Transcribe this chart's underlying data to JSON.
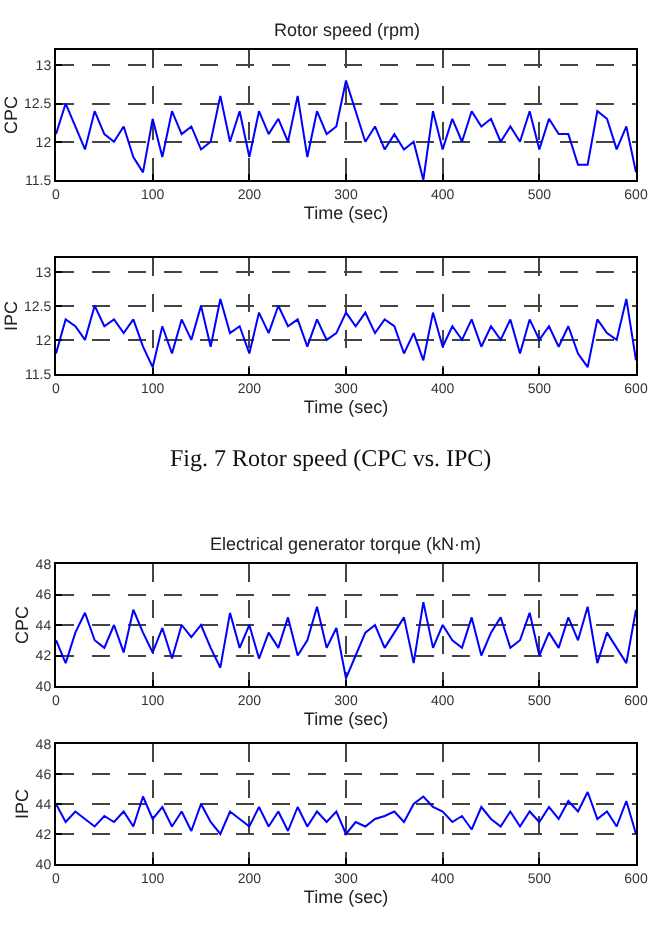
{
  "chart_data": [
    {
      "type": "line",
      "title": "Rotor speed (rpm)",
      "xlabel": "Time (sec)",
      "ylabel": "CPC",
      "xlim": [
        0,
        600
      ],
      "xticks": [
        0,
        100,
        200,
        300,
        400,
        500,
        600
      ],
      "ylim": [
        11.5,
        13.2
      ],
      "yticks": [
        11.5,
        12,
        12.5,
        13
      ],
      "grid": true,
      "x": [
        0,
        10,
        20,
        30,
        40,
        50,
        60,
        70,
        80,
        90,
        100,
        110,
        120,
        130,
        140,
        150,
        160,
        170,
        180,
        190,
        200,
        210,
        220,
        230,
        240,
        250,
        260,
        270,
        280,
        290,
        300,
        310,
        320,
        330,
        340,
        350,
        360,
        370,
        380,
        390,
        400,
        410,
        420,
        430,
        440,
        450,
        460,
        470,
        480,
        490,
        500,
        510,
        520,
        530,
        540,
        550,
        560,
        570,
        580,
        590,
        600
      ],
      "series": [
        {
          "color": "#0000ff",
          "values": [
            12.1,
            12.5,
            12.2,
            11.9,
            12.4,
            12.1,
            12.0,
            12.2,
            11.8,
            11.6,
            12.3,
            11.8,
            12.4,
            12.1,
            12.2,
            11.9,
            12.0,
            12.6,
            12.0,
            12.4,
            11.8,
            12.4,
            12.1,
            12.3,
            12.0,
            12.6,
            11.8,
            12.4,
            12.1,
            12.2,
            12.8,
            12.4,
            12.0,
            12.2,
            11.9,
            12.1,
            11.9,
            12.0,
            11.5,
            12.4,
            11.9,
            12.3,
            12.0,
            12.4,
            12.2,
            12.3,
            12.0,
            12.2,
            12.0,
            12.4,
            11.9,
            12.3,
            12.1,
            12.1,
            11.7,
            11.7,
            12.4,
            12.3,
            11.9,
            12.2,
            11.6
          ]
        }
      ]
    },
    {
      "type": "line",
      "xlabel": "Time (sec)",
      "ylabel": "IPC",
      "xlim": [
        0,
        600
      ],
      "xticks": [
        0,
        100,
        200,
        300,
        400,
        500,
        600
      ],
      "ylim": [
        11.5,
        13.2
      ],
      "yticks": [
        11.5,
        12,
        12.5,
        13
      ],
      "grid": true,
      "annotations": [
        "Fig. 7 Rotor speed (CPC vs. IPC)"
      ],
      "x": [
        0,
        10,
        20,
        30,
        40,
        50,
        60,
        70,
        80,
        90,
        100,
        110,
        120,
        130,
        140,
        150,
        160,
        170,
        180,
        190,
        200,
        210,
        220,
        230,
        240,
        250,
        260,
        270,
        280,
        290,
        300,
        310,
        320,
        330,
        340,
        350,
        360,
        370,
        380,
        390,
        400,
        410,
        420,
        430,
        440,
        450,
        460,
        470,
        480,
        490,
        500,
        510,
        520,
        530,
        540,
        550,
        560,
        570,
        580,
        590,
        600
      ],
      "series": [
        {
          "color": "#0000ff",
          "values": [
            11.8,
            12.3,
            12.2,
            12.0,
            12.5,
            12.2,
            12.3,
            12.1,
            12.3,
            11.9,
            11.6,
            12.2,
            11.8,
            12.3,
            12.0,
            12.5,
            11.9,
            12.6,
            12.1,
            12.2,
            11.8,
            12.4,
            12.1,
            12.5,
            12.2,
            12.3,
            11.9,
            12.3,
            12.0,
            12.1,
            12.4,
            12.2,
            12.4,
            12.1,
            12.3,
            12.2,
            11.8,
            12.1,
            11.7,
            12.4,
            11.9,
            12.2,
            12.0,
            12.3,
            11.9,
            12.2,
            12.0,
            12.3,
            11.8,
            12.3,
            12.0,
            12.2,
            11.9,
            12.2,
            11.8,
            11.6,
            12.3,
            12.1,
            12.0,
            12.6,
            11.7
          ]
        }
      ]
    },
    {
      "type": "line",
      "title": "Electrical generator torque (kN·m)",
      "xlabel": "Time (sec)",
      "ylabel": "CPC",
      "xlim": [
        0,
        600
      ],
      "xticks": [
        0,
        100,
        200,
        300,
        400,
        500,
        600
      ],
      "ylim": [
        40,
        48
      ],
      "yticks": [
        40,
        42,
        44,
        46,
        48
      ],
      "grid": true,
      "x": [
        0,
        10,
        20,
        30,
        40,
        50,
        60,
        70,
        80,
        90,
        100,
        110,
        120,
        130,
        140,
        150,
        160,
        170,
        180,
        190,
        200,
        210,
        220,
        230,
        240,
        250,
        260,
        270,
        280,
        290,
        300,
        310,
        320,
        330,
        340,
        350,
        360,
        370,
        380,
        390,
        400,
        410,
        420,
        430,
        440,
        450,
        460,
        470,
        480,
        490,
        500,
        510,
        520,
        530,
        540,
        550,
        560,
        570,
        580,
        590,
        600
      ],
      "series": [
        {
          "color": "#0000ff",
          "values": [
            43.0,
            41.5,
            43.5,
            44.8,
            43.0,
            42.5,
            44.0,
            42.2,
            45.0,
            43.5,
            42.2,
            43.8,
            41.8,
            44.0,
            43.2,
            44.0,
            42.5,
            41.2,
            44.8,
            42.5,
            44.0,
            41.8,
            43.5,
            42.5,
            44.5,
            42.0,
            43.0,
            45.2,
            42.5,
            43.8,
            40.5,
            42.0,
            43.5,
            44.0,
            42.5,
            43.5,
            44.5,
            41.5,
            45.5,
            42.5,
            44.0,
            43.0,
            42.5,
            44.5,
            42.0,
            43.5,
            44.5,
            42.5,
            43.0,
            44.8,
            42.0,
            43.5,
            42.5,
            44.5,
            43.0,
            45.2,
            41.5,
            43.5,
            42.5,
            41.5,
            45.0
          ]
        }
      ]
    },
    {
      "type": "line",
      "xlabel": "Time (sec)",
      "ylabel": "IPC",
      "xlim": [
        0,
        600
      ],
      "xticks": [
        0,
        100,
        200,
        300,
        400,
        500,
        600
      ],
      "ylim": [
        40,
        48
      ],
      "yticks": [
        40,
        42,
        44,
        46,
        48
      ],
      "grid": true,
      "x": [
        0,
        10,
        20,
        30,
        40,
        50,
        60,
        70,
        80,
        90,
        100,
        110,
        120,
        130,
        140,
        150,
        160,
        170,
        180,
        190,
        200,
        210,
        220,
        230,
        240,
        250,
        260,
        270,
        280,
        290,
        300,
        310,
        320,
        330,
        340,
        350,
        360,
        370,
        380,
        390,
        400,
        410,
        420,
        430,
        440,
        450,
        460,
        470,
        480,
        490,
        500,
        510,
        520,
        530,
        540,
        550,
        560,
        570,
        580,
        590,
        600
      ],
      "series": [
        {
          "color": "#0000ff",
          "values": [
            44.0,
            42.8,
            43.5,
            43.0,
            42.5,
            43.2,
            42.8,
            43.5,
            42.5,
            44.5,
            43.0,
            43.8,
            42.5,
            43.5,
            42.2,
            44.0,
            42.8,
            42.0,
            43.5,
            43.0,
            42.5,
            43.8,
            42.5,
            43.5,
            42.2,
            43.8,
            42.5,
            43.5,
            42.8,
            43.5,
            42.0,
            42.8,
            42.5,
            43.0,
            43.2,
            43.5,
            42.8,
            44.0,
            44.5,
            43.8,
            43.5,
            42.8,
            43.2,
            42.3,
            43.8,
            43.0,
            42.5,
            43.5,
            42.5,
            43.5,
            42.8,
            43.8,
            43.0,
            44.2,
            43.5,
            44.8,
            43.0,
            43.5,
            42.5,
            44.2,
            42.0
          ]
        }
      ]
    }
  ]
}
